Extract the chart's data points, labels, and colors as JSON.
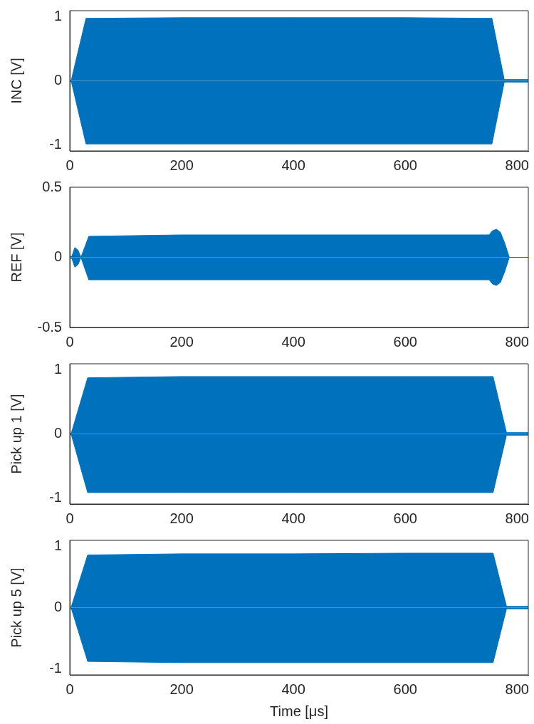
{
  "chart_data": [
    {
      "type": "area",
      "ylabel": "INC [V]",
      "xlim": [
        0,
        820
      ],
      "xticks": [
        0,
        200,
        400,
        600,
        800
      ],
      "ylim": [
        -1.1,
        1.1
      ],
      "yticks": [
        -1,
        0,
        1
      ],
      "series": [
        {
          "color": "#0072bd",
          "x": [
            0,
            3,
            29,
            200,
            400,
            600,
            755,
            777,
            820
          ],
          "values": [
            0,
            0.02,
            0.98,
            0.99,
            0.99,
            0.99,
            0.98,
            0.02,
            0.02
          ]
        },
        {
          "color": "#0072bd",
          "x": [
            0,
            3,
            29,
            200,
            400,
            600,
            755,
            777,
            820
          ],
          "values": [
            0,
            -0.02,
            -0.99,
            -0.99,
            -0.99,
            -0.99,
            -0.99,
            -0.02,
            -0.02
          ]
        }
      ]
    },
    {
      "type": "area",
      "ylabel": "REF [V]",
      "xlim": [
        0,
        820
      ],
      "xticks": [
        0,
        200,
        400,
        600,
        800
      ],
      "ylim": [
        -0.5,
        0.5
      ],
      "yticks": [
        -0.5,
        0,
        0.5
      ],
      "series": [
        {
          "color": "#0072bd",
          "x": [
            0,
            4,
            9,
            15,
            20,
            34,
            200,
            400,
            600,
            750,
            756,
            763,
            770,
            778,
            786,
            820
          ],
          "values": [
            0,
            0.01,
            0.07,
            0.05,
            0,
            0.15,
            0.16,
            0.16,
            0.16,
            0.16,
            0.19,
            0.2,
            0.18,
            0.1,
            0,
            0
          ]
        },
        {
          "color": "#0072bd",
          "x": [
            0,
            4,
            9,
            15,
            20,
            34,
            200,
            400,
            600,
            750,
            756,
            763,
            770,
            778,
            786,
            820
          ],
          "values": [
            0,
            -0.01,
            -0.07,
            -0.05,
            0,
            -0.16,
            -0.16,
            -0.16,
            -0.16,
            -0.16,
            -0.19,
            -0.2,
            -0.18,
            -0.1,
            0,
            0
          ]
        }
      ]
    },
    {
      "type": "area",
      "ylabel": "Pick up 1 [V]",
      "xlim": [
        0,
        820
      ],
      "xticks": [
        0,
        200,
        400,
        600,
        800
      ],
      "ylim": [
        -1.1,
        1.1
      ],
      "yticks": [
        -1,
        0,
        1
      ],
      "series": [
        {
          "color": "#0072bd",
          "x": [
            0,
            3,
            32,
            200,
            400,
            600,
            757,
            781,
            820
          ],
          "values": [
            0,
            0.02,
            0.88,
            0.9,
            0.9,
            0.9,
            0.9,
            0.02,
            0.02
          ]
        },
        {
          "color": "#0072bd",
          "x": [
            0,
            3,
            32,
            200,
            400,
            600,
            757,
            781,
            820
          ],
          "values": [
            0,
            -0.02,
            -0.92,
            -0.92,
            -0.92,
            -0.92,
            -0.92,
            -0.02,
            -0.02
          ]
        }
      ]
    },
    {
      "type": "area",
      "ylabel": "Pick up 5 [V]",
      "xlabel": "Time [μs]",
      "xlim": [
        0,
        820
      ],
      "xticks": [
        0,
        200,
        400,
        600,
        800
      ],
      "ylim": [
        -1.1,
        1.1
      ],
      "yticks": [
        -1,
        0,
        1
      ],
      "series": [
        {
          "color": "#0072bd",
          "x": [
            0,
            3,
            32,
            200,
            400,
            600,
            757,
            781,
            820
          ],
          "values": [
            0,
            0.02,
            0.86,
            0.88,
            0.88,
            0.89,
            0.89,
            0.02,
            0.02
          ]
        },
        {
          "color": "#0072bd",
          "x": [
            0,
            3,
            32,
            200,
            400,
            600,
            757,
            781,
            820
          ],
          "values": [
            0,
            -0.02,
            -0.88,
            -0.9,
            -0.9,
            -0.9,
            -0.9,
            -0.02,
            -0.02
          ]
        }
      ]
    }
  ]
}
